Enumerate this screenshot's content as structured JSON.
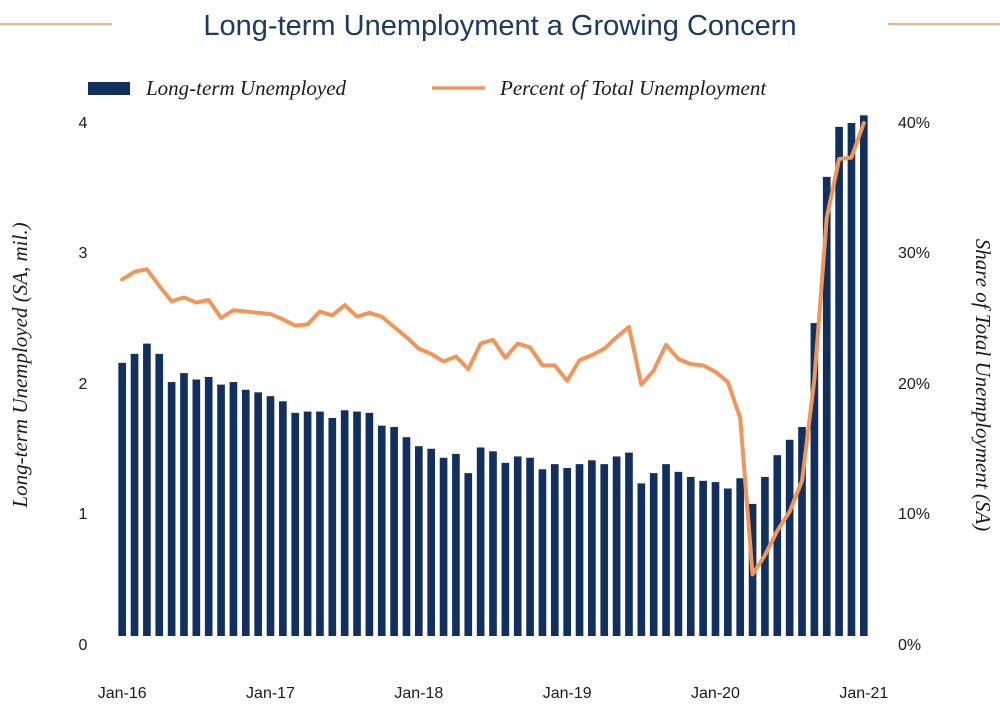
{
  "chart_data": {
    "type": "bar+line",
    "title": "Long-term Unemployment a Growing Concern",
    "legend": {
      "bars_label": "Long-term Unemployed",
      "line_label": "Percent of Total Unemployment",
      "placement": "top"
    },
    "ylabel_left": "Long-term Unemployed (SA, mil.)",
    "ylabel_right": "Share of Total Unemployment (SA)",
    "ylim_left": [
      0,
      4
    ],
    "ylim_right": [
      0,
      40
    ],
    "yticks_left": [
      "0",
      "1",
      "2",
      "3",
      "4"
    ],
    "yticks_right": [
      "0%",
      "10%",
      "20%",
      "30%",
      "40%"
    ],
    "xtick_labels": [
      "Jan-16",
      "Jan-17",
      "Jan-18",
      "Jan-19",
      "Jan-20",
      "Jan-21"
    ],
    "xtick_indices": [
      0,
      12,
      24,
      36,
      48,
      60
    ],
    "months": [
      "Jan-16",
      "Feb-16",
      "Mar-16",
      "Apr-16",
      "May-16",
      "Jun-16",
      "Jul-16",
      "Aug-16",
      "Sep-16",
      "Oct-16",
      "Nov-16",
      "Dec-16",
      "Jan-17",
      "Feb-17",
      "Mar-17",
      "Apr-17",
      "May-17",
      "Jun-17",
      "Jul-17",
      "Aug-17",
      "Sep-17",
      "Oct-17",
      "Nov-17",
      "Dec-17",
      "Jan-18",
      "Feb-18",
      "Mar-18",
      "Apr-18",
      "May-18",
      "Jun-18",
      "Jul-18",
      "Aug-18",
      "Sep-18",
      "Oct-18",
      "Nov-18",
      "Dec-18",
      "Jan-19",
      "Feb-19",
      "Mar-19",
      "Apr-19",
      "May-19",
      "Jun-19",
      "Jul-19",
      "Aug-19",
      "Sep-19",
      "Oct-19",
      "Nov-19",
      "Dec-19",
      "Jan-20",
      "Feb-20",
      "Mar-20",
      "Apr-20",
      "May-20",
      "Jun-20",
      "Jul-20",
      "Aug-20",
      "Sep-20",
      "Oct-20",
      "Nov-20",
      "Dec-20",
      "Jan-21"
    ],
    "series": [
      {
        "name": "Long-term Unemployed",
        "kind": "bar",
        "axis": "left",
        "values": [
          2.13,
          2.2,
          2.28,
          2.2,
          1.98,
          2.05,
          2.0,
          2.02,
          1.96,
          1.98,
          1.92,
          1.9,
          1.87,
          1.83,
          1.74,
          1.75,
          1.75,
          1.7,
          1.76,
          1.75,
          1.74,
          1.64,
          1.63,
          1.55,
          1.48,
          1.46,
          1.39,
          1.42,
          1.27,
          1.47,
          1.44,
          1.35,
          1.4,
          1.39,
          1.3,
          1.34,
          1.31,
          1.34,
          1.37,
          1.34,
          1.4,
          1.43,
          1.19,
          1.27,
          1.34,
          1.28,
          1.24,
          1.21,
          1.2,
          1.15,
          1.23,
          1.03,
          1.24,
          1.41,
          1.53,
          1.63,
          2.44,
          3.58,
          3.97,
          4.0,
          4.06
        ]
      },
      {
        "name": "Percent of Total Unemployment",
        "kind": "line",
        "axis": "right",
        "values": [
          27.8,
          28.4,
          28.6,
          27.3,
          26.1,
          26.4,
          26.0,
          26.2,
          24.8,
          25.4,
          25.3,
          25.2,
          25.1,
          24.7,
          24.2,
          24.3,
          25.3,
          25.0,
          25.8,
          24.9,
          25.2,
          24.9,
          24.1,
          23.3,
          22.4,
          22.0,
          21.4,
          21.8,
          20.8,
          22.8,
          23.1,
          21.7,
          22.8,
          22.5,
          21.1,
          21.1,
          19.9,
          21.5,
          21.9,
          22.4,
          23.3,
          24.1,
          19.6,
          20.7,
          22.7,
          21.6,
          21.2,
          21.1,
          20.6,
          19.8,
          17.0,
          4.8,
          6.3,
          8.2,
          9.7,
          12.1,
          20.0,
          32.6,
          37.2,
          37.3,
          40.0
        ]
      }
    ],
    "colors": {
      "bars": "#12305e",
      "line": "#f0965a",
      "title": "#1b3a66",
      "title_rule": "#f0965a"
    }
  }
}
